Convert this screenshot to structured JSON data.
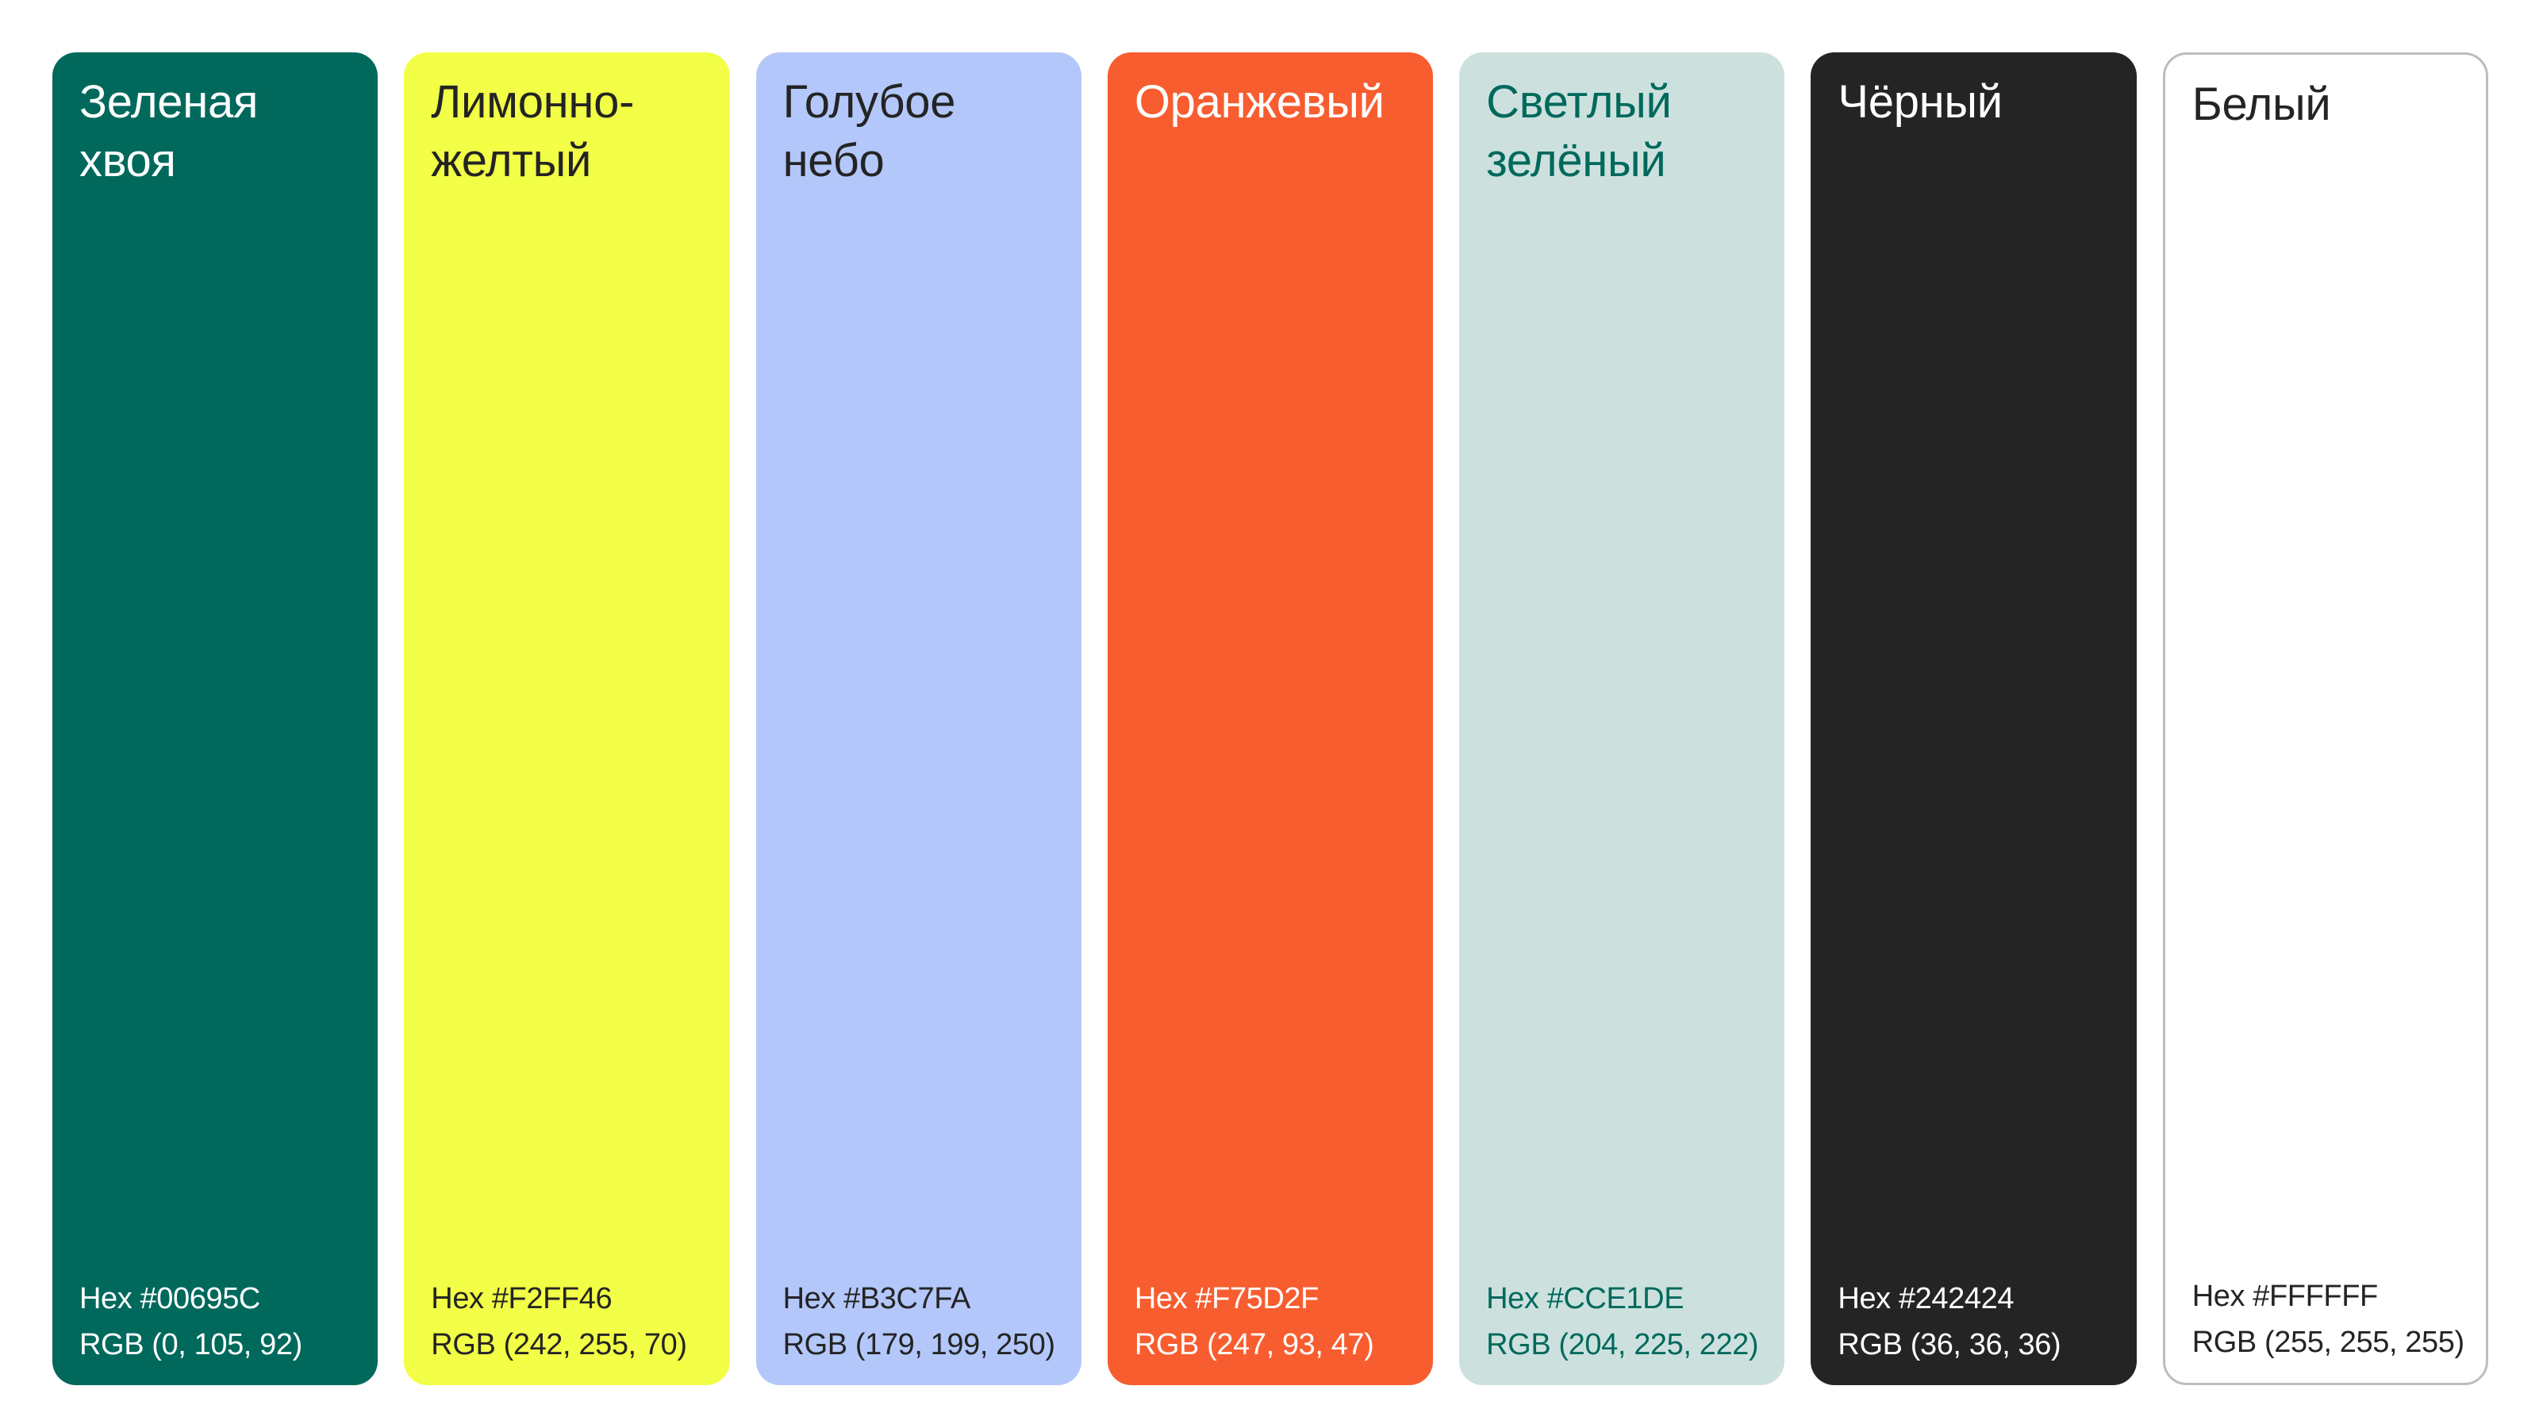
{
  "swatches": [
    {
      "name": "Зеленая хвоя",
      "hex_label": "Hex #00695C",
      "rgb_label": "RGB (0, 105, 92)",
      "bg_color": "#00695C",
      "text_color": "#FFFFFF"
    },
    {
      "name": "Лимонно-желтый",
      "hex_label": "Hex #F2FF46",
      "rgb_label": "RGB (242, 255, 70)",
      "bg_color": "#F2FF46",
      "text_color": "#242424"
    },
    {
      "name": "Голубое небо",
      "hex_label": "Hex #B3C7FA",
      "rgb_label": "RGB (179, 199, 250)",
      "bg_color": "#B3C7FA",
      "text_color": "#242424"
    },
    {
      "name": "Оранжевый",
      "hex_label": "Hex #F75D2F",
      "rgb_label": "RGB (247, 93, 47)",
      "bg_color": "#F75D2F",
      "text_color": "#FFFFFF"
    },
    {
      "name": "Светлый зелёный",
      "hex_label": "Hex #CCE1DE",
      "rgb_label": "RGB (204, 225, 222)",
      "bg_color": "#CCE1DE",
      "text_color": "#00695C"
    },
    {
      "name": "Чёрный",
      "hex_label": "Hex #242424",
      "rgb_label": "RGB (36, 36, 36)",
      "bg_color": "#242424",
      "text_color": "#FFFFFF"
    },
    {
      "name": "Белый",
      "hex_label": "Hex #FFFFFF",
      "rgb_label": "RGB (255, 255, 255)",
      "bg_color": "#FFFFFF",
      "text_color": "#242424",
      "outlined": true
    }
  ]
}
